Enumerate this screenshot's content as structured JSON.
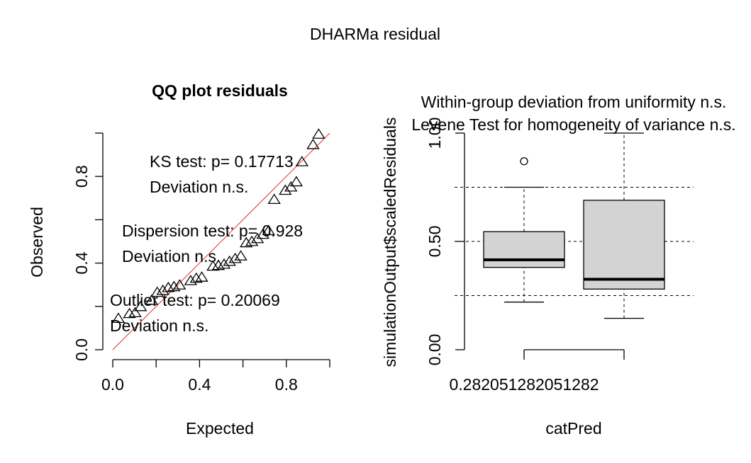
{
  "figure": {
    "title": "DHARMa residual"
  },
  "chart_data": [
    {
      "type": "scatter",
      "title": "QQ plot residuals",
      "xlabel": "Expected",
      "ylabel": "Observed",
      "xlim": [
        0,
        1
      ],
      "ylim": [
        0,
        1
      ],
      "x_ticks": [
        0.0,
        0.4,
        0.8
      ],
      "x_tick_labels": [
        "0.0",
        "0.4",
        "0.8"
      ],
      "y_ticks": [
        0.0,
        0.4,
        0.8
      ],
      "y_tick_labels": [
        "0.0",
        "0.4",
        "0.8"
      ],
      "marker": "triangle-open",
      "reference_line": {
        "slope": 1,
        "intercept": 0,
        "color": "#e0303a"
      },
      "points": [
        {
          "x": 0.026,
          "y": 0.142
        },
        {
          "x": 0.077,
          "y": 0.164
        },
        {
          "x": 0.103,
          "y": 0.168
        },
        {
          "x": 0.128,
          "y": 0.196
        },
        {
          "x": 0.179,
          "y": 0.225
        },
        {
          "x": 0.205,
          "y": 0.262
        },
        {
          "x": 0.231,
          "y": 0.271
        },
        {
          "x": 0.256,
          "y": 0.284
        },
        {
          "x": 0.282,
          "y": 0.288
        },
        {
          "x": 0.308,
          "y": 0.296
        },
        {
          "x": 0.359,
          "y": 0.316
        },
        {
          "x": 0.385,
          "y": 0.327
        },
        {
          "x": 0.41,
          "y": 0.332
        },
        {
          "x": 0.462,
          "y": 0.383
        },
        {
          "x": 0.487,
          "y": 0.386
        },
        {
          "x": 0.513,
          "y": 0.392
        },
        {
          "x": 0.538,
          "y": 0.405
        },
        {
          "x": 0.564,
          "y": 0.418
        },
        {
          "x": 0.59,
          "y": 0.43
        },
        {
          "x": 0.615,
          "y": 0.491
        },
        {
          "x": 0.641,
          "y": 0.497
        },
        {
          "x": 0.667,
          "y": 0.51
        },
        {
          "x": 0.692,
          "y": 0.53
        },
        {
          "x": 0.718,
          "y": 0.547
        },
        {
          "x": 0.744,
          "y": 0.691
        },
        {
          "x": 0.795,
          "y": 0.733
        },
        {
          "x": 0.821,
          "y": 0.748
        },
        {
          "x": 0.846,
          "y": 0.772
        },
        {
          "x": 0.872,
          "y": 0.865
        },
        {
          "x": 0.923,
          "y": 0.944
        },
        {
          "x": 0.949,
          "y": 0.992
        }
      ],
      "annotations": [
        {
          "id": "ks-test",
          "text": "KS test: p= 0.17713"
        },
        {
          "id": "ks-deviation",
          "text": "Deviation  n.s."
        },
        {
          "id": "dispersion-test",
          "text": "Dispersion test: p= 0.928"
        },
        {
          "id": "dispersion-deviation",
          "text": "Deviation  n.s."
        },
        {
          "id": "outlier-test",
          "text": "Outlier test: p= 0.20069"
        },
        {
          "id": "outlier-deviation",
          "text": "Deviation  n.s."
        }
      ]
    },
    {
      "type": "box",
      "title_lines": [
        "Within-group deviation from uniformity n.s.",
        "Levene Test for homogeneity of variance n.s."
      ],
      "xlabel": "catPred",
      "ylabel": "simulationOutput$scaledResiduals",
      "ylim": [
        0,
        1
      ],
      "y_ticks": [
        0.0,
        0.5,
        1.0
      ],
      "y_tick_labels": [
        "0.00",
        "0.50",
        "1.00"
      ],
      "x_tick_labels": [
        "0.282051282051282"
      ],
      "reference_lines_y": [
        0.25,
        0.5,
        0.75
      ],
      "box_fill": "#d3d3d3",
      "boxes": [
        {
          "q1": 0.38,
          "median": 0.415,
          "q3": 0.545,
          "whisker_low": 0.22,
          "whisker_high": 0.75,
          "outliers": [
            0.87
          ]
        },
        {
          "q1": 0.28,
          "median": 0.325,
          "q3": 0.69,
          "whisker_low": 0.145,
          "whisker_high": 1.0,
          "outliers": []
        }
      ]
    }
  ]
}
